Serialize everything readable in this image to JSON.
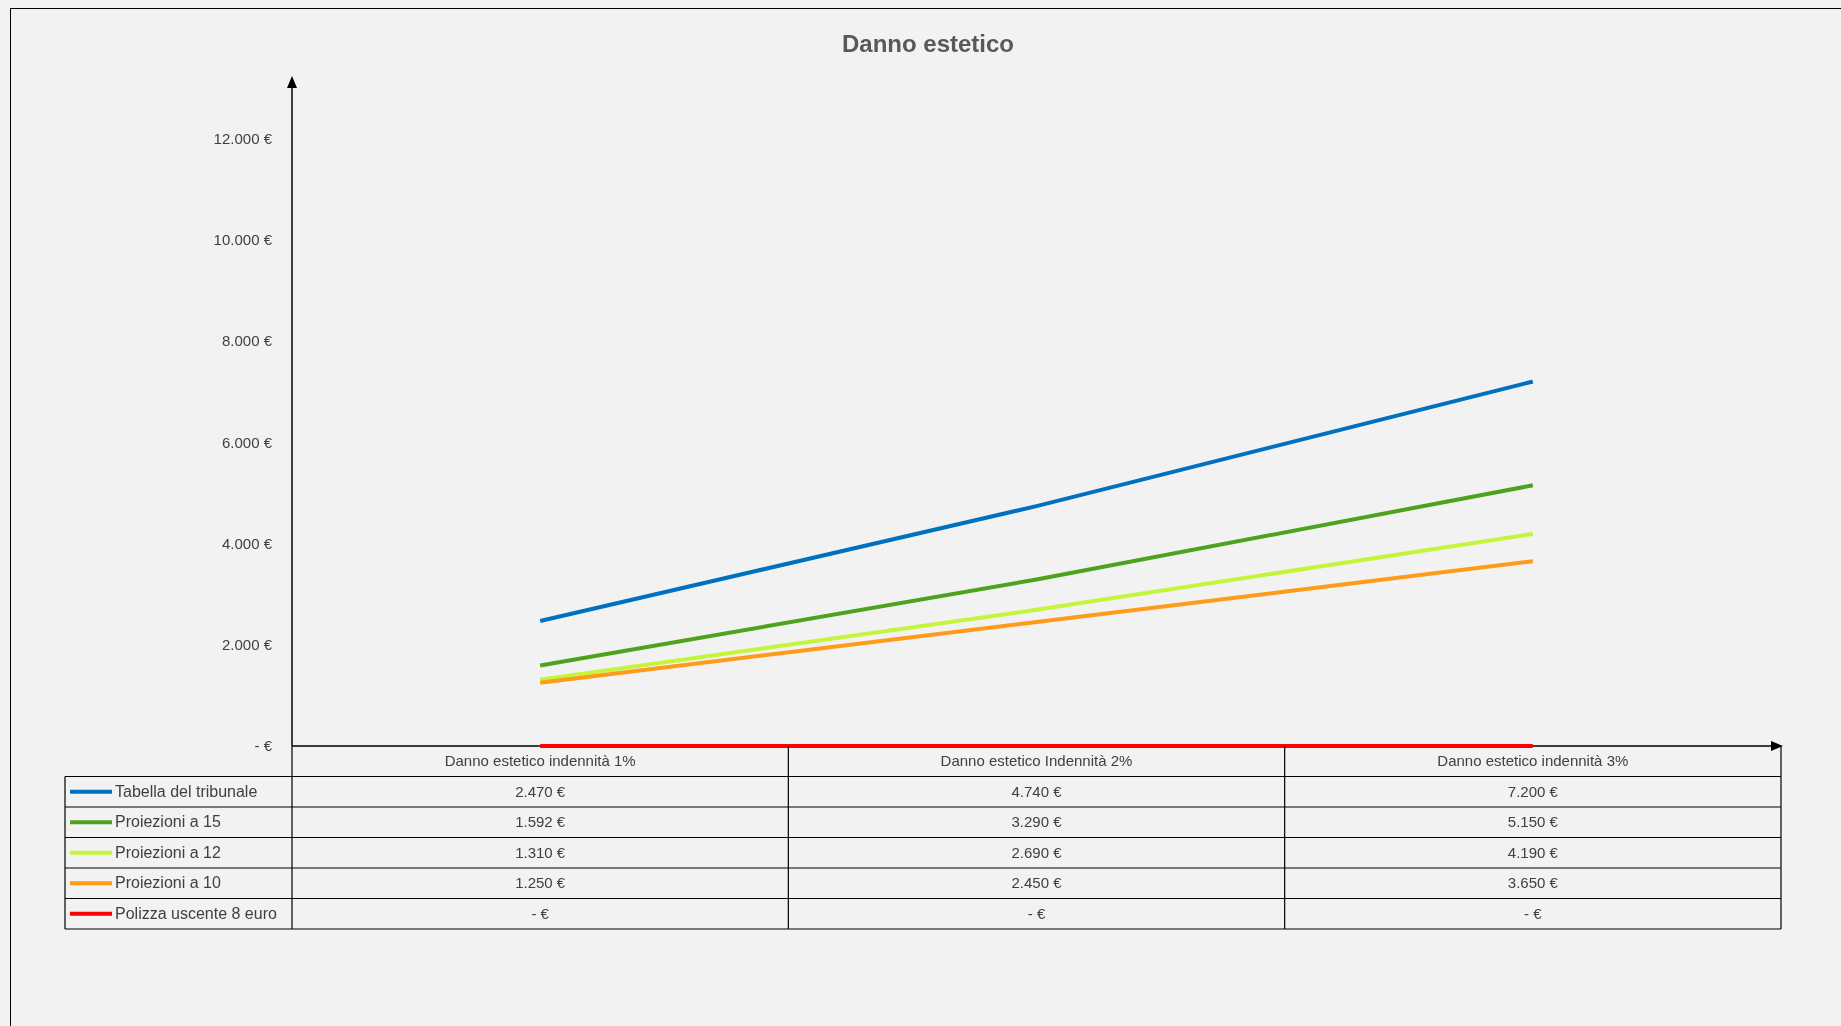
{
  "chart_data": {
    "type": "line",
    "title": "Danno estetico",
    "categories": [
      "Danno estetico indennità 1%",
      "Danno estetico Indennità 2%",
      "Danno estetico indennità 3%"
    ],
    "series": [
      {
        "name": "Tabella del tribunale",
        "color": "#0070c0",
        "values": [
          2470,
          4740,
          7200
        ],
        "value_labels": [
          "2.470 €",
          "4.740 €",
          "7.200 €"
        ]
      },
      {
        "name": "Proiezioni a 15",
        "color": "#4ea21c",
        "values": [
          1592,
          3290,
          5150
        ],
        "value_labels": [
          "1.592 €",
          "3.290 €",
          "5.150 €"
        ]
      },
      {
        "name": "Proiezioni a 12",
        "color": "#c4f53a",
        "values": [
          1310,
          2690,
          4190
        ],
        "value_labels": [
          "1.310 €",
          "2.690 €",
          "4.190 €"
        ]
      },
      {
        "name": "Proiezioni a 10",
        "color": "#ff9a1a",
        "values": [
          1250,
          2450,
          3650
        ],
        "value_labels": [
          "1.250 €",
          "2.450 €",
          "3.650 €"
        ]
      },
      {
        "name": "Polizza uscente 8 euro",
        "color": "#ff0000",
        "values": [
          0,
          0,
          0
        ],
        "value_labels": [
          "- €",
          "- €",
          "- €"
        ]
      }
    ],
    "ylim": [
      0,
      13000
    ],
    "yticks": [
      {
        "value": 0,
        "label": "- €"
      },
      {
        "value": 2000,
        "label": "2.000 €"
      },
      {
        "value": 4000,
        "label": "4.000 €"
      },
      {
        "value": 6000,
        "label": "6.000 €"
      },
      {
        "value": 8000,
        "label": "8.000 €"
      },
      {
        "value": 10000,
        "label": "10.000 €"
      },
      {
        "value": 12000,
        "label": "12.000 €"
      }
    ],
    "legend": "bottom"
  }
}
